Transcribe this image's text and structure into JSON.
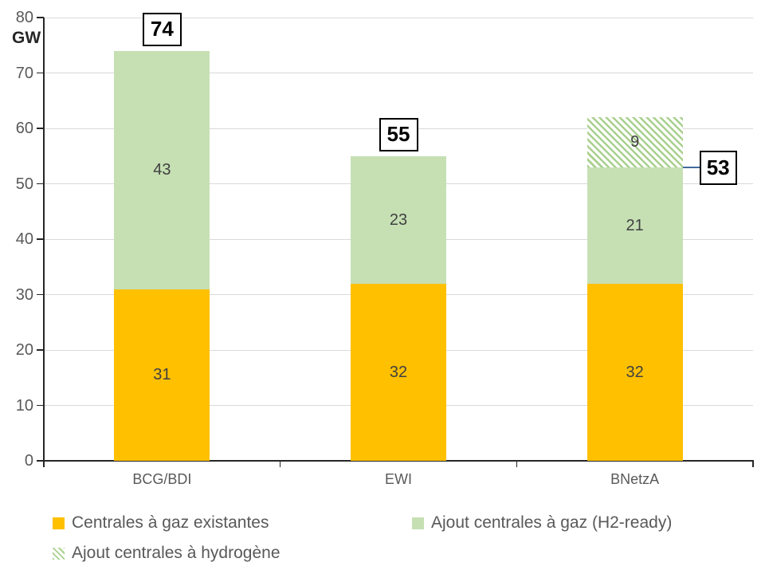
{
  "chart_data": {
    "type": "bar",
    "stacked": true,
    "title": "",
    "xlabel": "",
    "ylabel": "GW",
    "ylim": [
      0,
      80
    ],
    "ytick_step": 10,
    "grid": true,
    "legend_position": "bottom",
    "categories": [
      "BCG/BDI",
      "EWI",
      "BNetzA"
    ],
    "series": [
      {
        "name": "Centrales à gaz existantes",
        "color": "#FFC000",
        "pattern": "solid",
        "values": [
          31,
          32,
          32
        ]
      },
      {
        "name": "Ajout centrales à gaz (H2-ready)",
        "color": "#C6E0B4",
        "pattern": "solid",
        "values": [
          43,
          23,
          21
        ]
      },
      {
        "name": "Ajout centrales à hydrogène",
        "color": "#A9D08E",
        "pattern": "diagonal-hatch",
        "values": [
          0,
          0,
          9
        ]
      }
    ],
    "totals": [
      {
        "category": "BCG/BDI",
        "label": "74",
        "placement": "above"
      },
      {
        "category": "EWI",
        "label": "55",
        "placement": "above"
      },
      {
        "category": "BNetzA",
        "label": "53",
        "placement": "callout-right",
        "at_value": 53
      }
    ]
  },
  "colors": {
    "background": "#FFFFFF",
    "axis": "#262626",
    "gridline": "#D9D9D9",
    "tick_label": "#595959",
    "segment_label": "#404040",
    "total_label": "#000000",
    "callout_line": "#44699C",
    "hatch_background": "#FFFFFF"
  }
}
